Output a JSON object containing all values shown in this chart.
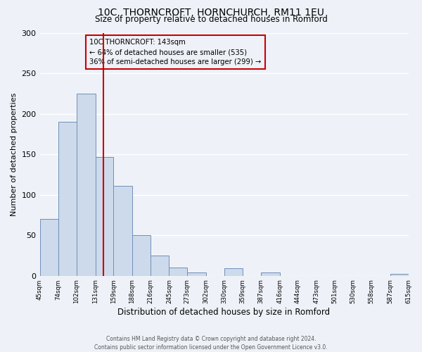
{
  "title1": "10C, THORNCROFT, HORNCHURCH, RM11 1EU",
  "title2": "Size of property relative to detached houses in Romford",
  "xlabel": "Distribution of detached houses by size in Romford",
  "ylabel": "Number of detached properties",
  "bin_edges": [
    45,
    74,
    102,
    131,
    159,
    188,
    216,
    245,
    273,
    302,
    330,
    359,
    387,
    416,
    444,
    473,
    501,
    530,
    558,
    587,
    615
  ],
  "bar_heights": [
    70,
    190,
    225,
    147,
    111,
    50,
    25,
    10,
    4,
    0,
    9,
    0,
    4,
    0,
    0,
    0,
    0,
    0,
    0,
    2
  ],
  "bar_color": "#cddaeb",
  "bar_edge_color": "#7090b8",
  "property_size": 143,
  "property_line_color": "#cc0000",
  "annotation_line1": "10C THORNCROFT: 143sqm",
  "annotation_line2": "← 64% of detached houses are smaller (535)",
  "annotation_line3": "36% of semi-detached houses are larger (299) →",
  "annotation_box_edge_color": "#cc0000",
  "ylim": [
    0,
    300
  ],
  "yticks": [
    0,
    50,
    100,
    150,
    200,
    250,
    300
  ],
  "footer1": "Contains HM Land Registry data © Crown copyright and database right 2024.",
  "footer2": "Contains public sector information licensed under the Open Government Licence v3.0.",
  "bg_color": "#eef2f8",
  "grid_color": "#ffffff"
}
